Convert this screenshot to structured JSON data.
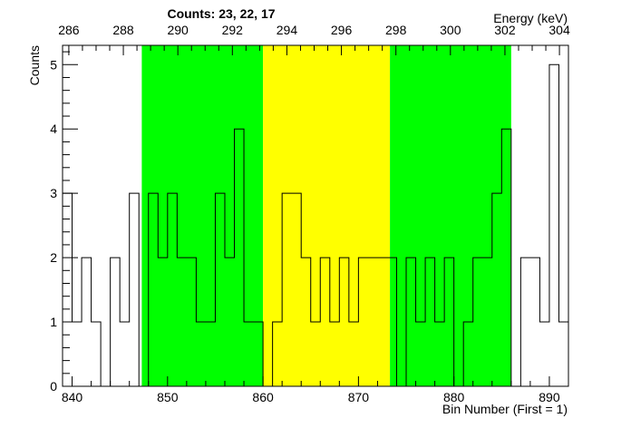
{
  "chart_data": {
    "type": "histogram",
    "title": "Counts:   23,   22,   17",
    "xlabel": "Bin Number (First = 1)",
    "ylabel": "Counts",
    "x2label": "Energy (keV)",
    "xlim": [
      839.0,
      892.0
    ],
    "ylim": [
      0,
      5.3
    ],
    "x_ticks": [
      840,
      850,
      860,
      870,
      880,
      890
    ],
    "y_ticks": [
      0,
      1,
      2,
      3,
      4,
      5
    ],
    "x2_ticks": [
      286,
      288,
      290,
      292,
      294,
      296,
      298,
      300,
      302,
      304
    ],
    "x2_range": [
      285.77,
      304.33
    ],
    "regions": [
      {
        "x0": 847.3,
        "x1": 860.0,
        "color": "#00ff00"
      },
      {
        "x0": 860.0,
        "x1": 873.3,
        "color": "#ffff00"
      },
      {
        "x0": 873.3,
        "x1": 886.0,
        "color": "#00ff00"
      }
    ],
    "bins": {
      "x_start": 839.0,
      "width": 1.0,
      "values": [
        3,
        1,
        2,
        1,
        0,
        2,
        1,
        3,
        0,
        3,
        2,
        3,
        2,
        2,
        1,
        1,
        3,
        2,
        4,
        1,
        1,
        0,
        1,
        3,
        3,
        2,
        1,
        2,
        1,
        2,
        1,
        2,
        2,
        2,
        2,
        0,
        2,
        1,
        2,
        1,
        2,
        0,
        1,
        2,
        2,
        3,
        4,
        0,
        2,
        2,
        1,
        5,
        1
      ]
    }
  }
}
